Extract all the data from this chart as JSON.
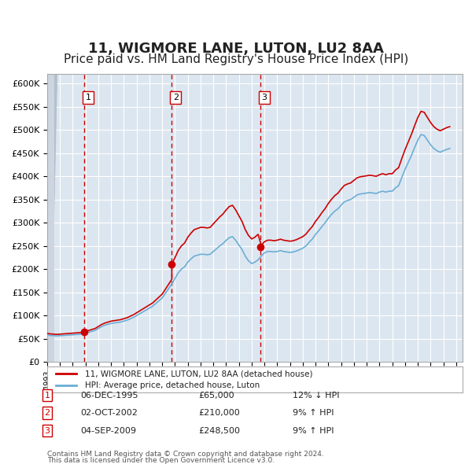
{
  "title": "11, WIGMORE LANE, LUTON, LU2 8AA",
  "subtitle": "Price paid vs. HM Land Registry's House Price Index (HPI)",
  "xlabel": "",
  "ylabel": "",
  "ylim": [
    0,
    620000
  ],
  "yticks": [
    0,
    50000,
    100000,
    150000,
    200000,
    250000,
    300000,
    350000,
    400000,
    450000,
    500000,
    550000,
    600000
  ],
  "ytick_labels": [
    "£0",
    "£50K",
    "£100K",
    "£150K",
    "£200K",
    "£250K",
    "£300K",
    "£350K",
    "£400K",
    "£450K",
    "£500K",
    "£550K",
    "£600K"
  ],
  "xlim": [
    1993.0,
    2025.5
  ],
  "background_color": "#ffffff",
  "plot_bg_color": "#dce6f0",
  "grid_color": "#ffffff",
  "hatch_color": "#c0c8d8",
  "title_fontsize": 13,
  "subtitle_fontsize": 11,
  "transactions": [
    {
      "num": 1,
      "date": "06-DEC-1995",
      "price": 65000,
      "year": 1995.92,
      "hpi_pct": "12% ↓ HPI"
    },
    {
      "num": 2,
      "date": "02-OCT-2002",
      "price": 210000,
      "year": 2002.75,
      "hpi_pct": "9% ↑ HPI"
    },
    {
      "num": 3,
      "date": "04-SEP-2009",
      "price": 248500,
      "year": 2009.67,
      "hpi_pct": "9% ↑ HPI"
    }
  ],
  "legend_entry1": "11, WIGMORE LANE, LUTON, LU2 8AA (detached house)",
  "legend_entry2": "HPI: Average price, detached house, Luton",
  "footer1": "Contains HM Land Registry data © Crown copyright and database right 2024.",
  "footer2": "This data is licensed under the Open Government Licence v3.0.",
  "hpi_line_color": "#6baed6",
  "price_line_color": "#cc0000",
  "marker_color": "#cc0000",
  "vline_color": "#cc0000",
  "hpi_data_x": [
    1993.0,
    1993.25,
    1993.5,
    1993.75,
    1994.0,
    1994.25,
    1994.5,
    1994.75,
    1995.0,
    1995.25,
    1995.5,
    1995.75,
    1996.0,
    1996.25,
    1996.5,
    1996.75,
    1997.0,
    1997.25,
    1997.5,
    1997.75,
    1998.0,
    1998.25,
    1998.5,
    1998.75,
    1999.0,
    1999.25,
    1999.5,
    1999.75,
    2000.0,
    2000.25,
    2000.5,
    2000.75,
    2001.0,
    2001.25,
    2001.5,
    2001.75,
    2002.0,
    2002.25,
    2002.5,
    2002.75,
    2003.0,
    2003.25,
    2003.5,
    2003.75,
    2004.0,
    2004.25,
    2004.5,
    2004.75,
    2005.0,
    2005.25,
    2005.5,
    2005.75,
    2006.0,
    2006.25,
    2006.5,
    2006.75,
    2007.0,
    2007.25,
    2007.5,
    2007.75,
    2008.0,
    2008.25,
    2008.5,
    2008.75,
    2009.0,
    2009.25,
    2009.5,
    2009.75,
    2010.0,
    2010.25,
    2010.5,
    2010.75,
    2011.0,
    2011.25,
    2011.5,
    2011.75,
    2012.0,
    2012.25,
    2012.5,
    2012.75,
    2013.0,
    2013.25,
    2013.5,
    2013.75,
    2014.0,
    2014.25,
    2014.5,
    2014.75,
    2015.0,
    2015.25,
    2015.5,
    2015.75,
    2016.0,
    2016.25,
    2016.5,
    2016.75,
    2017.0,
    2017.25,
    2017.5,
    2017.75,
    2018.0,
    2018.25,
    2018.5,
    2018.75,
    2019.0,
    2019.25,
    2019.5,
    2019.75,
    2020.0,
    2020.25,
    2020.5,
    2020.75,
    2021.0,
    2021.25,
    2021.5,
    2021.75,
    2022.0,
    2022.25,
    2022.5,
    2022.75,
    2023.0,
    2023.25,
    2023.5,
    2023.75,
    2024.0,
    2024.25,
    2024.5
  ],
  "hpi_data_y": [
    58000,
    57000,
    56500,
    56000,
    56500,
    57000,
    57500,
    58000,
    58500,
    59000,
    59500,
    60000,
    62000,
    64000,
    66000,
    68000,
    72000,
    76000,
    79000,
    81000,
    83000,
    84000,
    85000,
    86000,
    88000,
    90000,
    93000,
    96000,
    100000,
    104000,
    108000,
    112000,
    116000,
    120000,
    126000,
    132000,
    138000,
    148000,
    158000,
    168000,
    180000,
    192000,
    200000,
    205000,
    215000,
    222000,
    228000,
    230000,
    232000,
    232000,
    231000,
    232000,
    238000,
    244000,
    250000,
    255000,
    262000,
    268000,
    270000,
    262000,
    252000,
    242000,
    228000,
    218000,
    212000,
    215000,
    220000,
    228000,
    235000,
    238000,
    238000,
    237000,
    238000,
    240000,
    238000,
    237000,
    236000,
    237000,
    239000,
    242000,
    245000,
    250000,
    258000,
    265000,
    275000,
    283000,
    292000,
    300000,
    310000,
    318000,
    325000,
    330000,
    338000,
    345000,
    348000,
    350000,
    355000,
    360000,
    362000,
    363000,
    364000,
    365000,
    364000,
    363000,
    366000,
    368000,
    366000,
    368000,
    368000,
    375000,
    380000,
    398000,
    415000,
    430000,
    445000,
    462000,
    478000,
    490000,
    488000,
    478000,
    468000,
    460000,
    455000,
    452000,
    455000,
    458000,
    460000
  ],
  "price_data_x": [
    1995.92,
    2002.75,
    2009.67
  ],
  "price_data_y": [
    65000,
    210000,
    248500
  ]
}
